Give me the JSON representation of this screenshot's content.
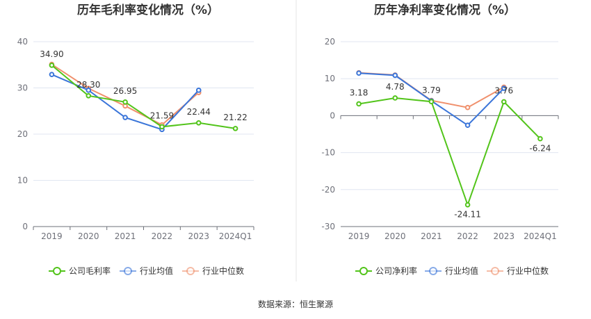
{
  "source_note": "数据来源：恒生聚源",
  "chart_data": [
    {
      "type": "line",
      "title": "历年毛利率变化情况（%）",
      "categories": [
        "2019",
        "2020",
        "2021",
        "2022",
        "2023",
        "2024Q1"
      ],
      "ylim": [
        0,
        40
      ],
      "yticks": [
        0,
        10,
        20,
        30,
        40
      ],
      "grid": true,
      "legend_position": "bottom",
      "series": [
        {
          "name": "公司毛利率",
          "color": "#52c41a",
          "values": [
            34.9,
            28.3,
            26.95,
            21.59,
            22.44,
            21.22
          ],
          "labels": [
            "34.90",
            "28.30",
            "26.95",
            "21.59",
            "22.44",
            "21.22"
          ]
        },
        {
          "name": "行业均值",
          "color": "#3a75d9",
          "values": [
            32.9,
            29.5,
            23.6,
            21.0,
            29.5,
            null
          ]
        },
        {
          "name": "行业中位数",
          "color": "#f0906c",
          "values": [
            35.1,
            29.9,
            26.1,
            22.0,
            29.0,
            null
          ]
        }
      ]
    },
    {
      "type": "line",
      "title": "历年净利率变化情况（%）",
      "categories": [
        "2019",
        "2020",
        "2021",
        "2022",
        "2023",
        "2024Q1"
      ],
      "ylim": [
        -30,
        20
      ],
      "yticks": [
        -30,
        -20,
        -10,
        0,
        10,
        20
      ],
      "grid": true,
      "legend_position": "bottom",
      "series": [
        {
          "name": "公司净利率",
          "color": "#52c41a",
          "values": [
            3.18,
            4.78,
            3.79,
            -24.11,
            3.76,
            -6.24
          ],
          "labels": [
            "3.18",
            "4.78",
            "3.79",
            "-24.11",
            "3.76",
            "-6.24"
          ]
        },
        {
          "name": "行业均值",
          "color": "#3a75d9",
          "values": [
            11.5,
            10.9,
            4.0,
            -2.6,
            7.4,
            null
          ]
        },
        {
          "name": "行业中位数",
          "color": "#f0906c",
          "values": [
            11.6,
            11.0,
            4.1,
            2.2,
            7.7,
            null
          ]
        }
      ]
    }
  ]
}
